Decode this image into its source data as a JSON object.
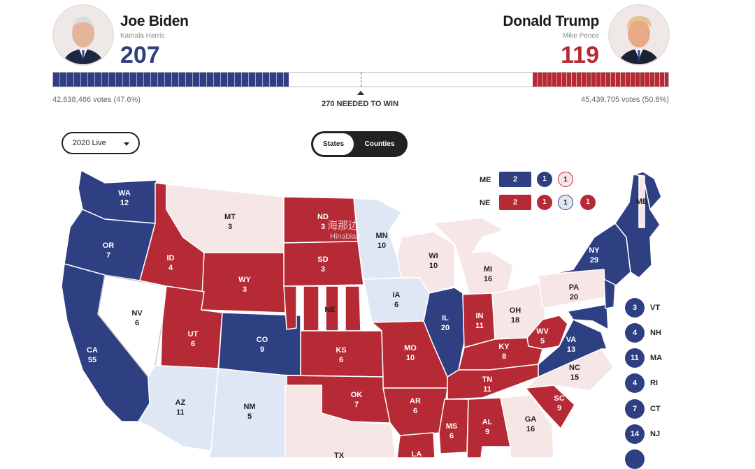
{
  "candidates": {
    "dem": {
      "name": "Joe Biden",
      "running_mate": "Kamala Harris",
      "electoral_votes": "207",
      "popular": "42,638,466 votes (47.6%)",
      "color": "#2e3f82"
    },
    "rep": {
      "name": "Donald Trump",
      "running_mate": "Mike Pence",
      "electoral_votes": "119",
      "popular": "45,439,705 votes (50.8%)",
      "color": "#b52a35"
    }
  },
  "needed_to_win": "270 NEEDED TO WIN",
  "controls": {
    "year_select": "2020 Live",
    "view_toggle": {
      "states": "States",
      "counties": "Counties"
    }
  },
  "colors": {
    "dem": "#2e3f82",
    "rep": "#b52a35",
    "lean_dem": "#dfe7f5",
    "lean_rep": "#f6e6e6",
    "tossup": "#ffffff"
  },
  "district_legend": {
    "ME": {
      "label": "ME",
      "total": "2",
      "districts": [
        "1",
        "1"
      ]
    },
    "NE": {
      "label": "NE",
      "total": "2",
      "districts": [
        "1",
        "1",
        "1"
      ]
    }
  },
  "small_states": [
    {
      "abbr": "VT",
      "ev": "3"
    },
    {
      "abbr": "NH",
      "ev": "4"
    },
    {
      "abbr": "MA",
      "ev": "11"
    },
    {
      "abbr": "RI",
      "ev": "4"
    },
    {
      "abbr": "CT",
      "ev": "7"
    },
    {
      "abbr": "NJ",
      "ev": "14"
    }
  ],
  "states": {
    "WA": {
      "abbr": "WA",
      "ev": "12"
    },
    "OR": {
      "abbr": "OR",
      "ev": "7"
    },
    "CA": {
      "abbr": "CA",
      "ev": "55"
    },
    "NV": {
      "abbr": "NV",
      "ev": "6"
    },
    "ID": {
      "abbr": "ID",
      "ev": "4"
    },
    "MT": {
      "abbr": "MT",
      "ev": "3"
    },
    "WY": {
      "abbr": "WY",
      "ev": "3"
    },
    "UT": {
      "abbr": "UT",
      "ev": "6"
    },
    "CO": {
      "abbr": "CO",
      "ev": "9"
    },
    "AZ": {
      "abbr": "AZ",
      "ev": "11"
    },
    "NM": {
      "abbr": "NM",
      "ev": "5"
    },
    "ND": {
      "abbr": "ND",
      "ev": "3"
    },
    "SD": {
      "abbr": "SD",
      "ev": "3"
    },
    "NE": {
      "abbr": "NE",
      "ev": ""
    },
    "KS": {
      "abbr": "KS",
      "ev": "6"
    },
    "OK": {
      "abbr": "OK",
      "ev": "7"
    },
    "TX": {
      "abbr": "TX",
      "ev": ""
    },
    "MN": {
      "abbr": "MN",
      "ev": "10"
    },
    "IA": {
      "abbr": "IA",
      "ev": "6"
    },
    "MO": {
      "abbr": "MO",
      "ev": "10"
    },
    "AR": {
      "abbr": "AR",
      "ev": "6"
    },
    "LA": {
      "abbr": "LA",
      "ev": ""
    },
    "WI": {
      "abbr": "WI",
      "ev": "10"
    },
    "IL": {
      "abbr": "IL",
      "ev": "20"
    },
    "MI": {
      "abbr": "MI",
      "ev": "16"
    },
    "IN": {
      "abbr": "IN",
      "ev": "11"
    },
    "OH": {
      "abbr": "OH",
      "ev": "18"
    },
    "KY": {
      "abbr": "KY",
      "ev": "8"
    },
    "TN": {
      "abbr": "TN",
      "ev": "11"
    },
    "MS": {
      "abbr": "MS",
      "ev": "6"
    },
    "AL": {
      "abbr": "AL",
      "ev": "9"
    },
    "GA": {
      "abbr": "GA",
      "ev": "16"
    },
    "SC": {
      "abbr": "SC",
      "ev": "9"
    },
    "NC": {
      "abbr": "NC",
      "ev": "15"
    },
    "VA": {
      "abbr": "VA",
      "ev": "13"
    },
    "WV": {
      "abbr": "WV",
      "ev": "5"
    },
    "PA": {
      "abbr": "PA",
      "ev": "20"
    },
    "NY": {
      "abbr": "NY",
      "ev": "29"
    },
    "ME": {
      "abbr": "ME",
      "ev": ""
    }
  },
  "watermark": {
    "cn": "海那边",
    "en": "Hinabian"
  }
}
